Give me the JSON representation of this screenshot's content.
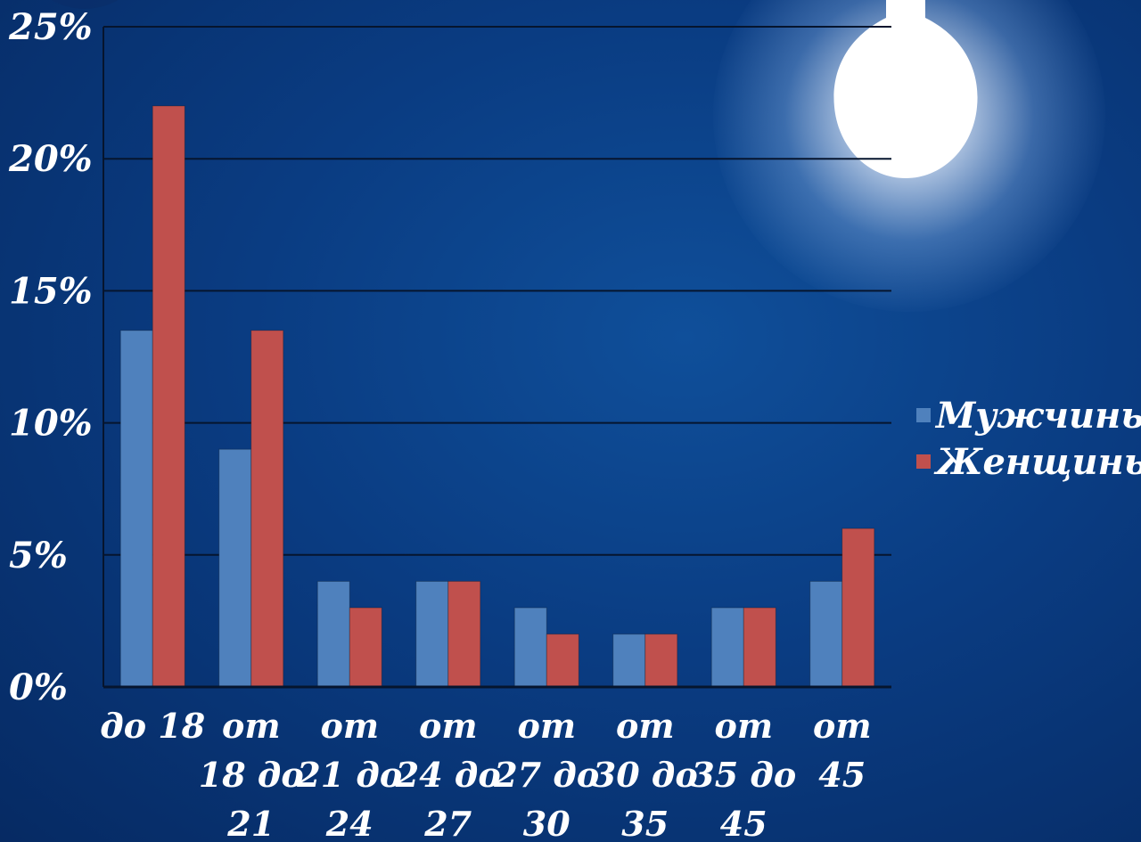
{
  "chart_data": {
    "type": "bar",
    "categories": [
      [
        "до 18"
      ],
      [
        "от",
        "18 до",
        "21"
      ],
      [
        "от",
        "21 до",
        "24"
      ],
      [
        "от",
        "24 до",
        "27"
      ],
      [
        "от",
        "27 до",
        "30"
      ],
      [
        "от",
        "30 до",
        "35"
      ],
      [
        "от",
        "35 до",
        "45"
      ],
      [
        "от",
        "45"
      ]
    ],
    "series": [
      {
        "name": "Мужчины",
        "color": "#4f81bd",
        "values": [
          13.5,
          9,
          4,
          4,
          3,
          2,
          3,
          4
        ]
      },
      {
        "name": "Женщины",
        "color": "#c0504d",
        "values": [
          22,
          13.5,
          3,
          4,
          2,
          2,
          3,
          6
        ]
      }
    ],
    "y_ticks": [
      "0%",
      "5%",
      "10%",
      "15%",
      "20%",
      "25%"
    ],
    "ylim": [
      0,
      25
    ],
    "grid": true,
    "legend_position": "right"
  }
}
